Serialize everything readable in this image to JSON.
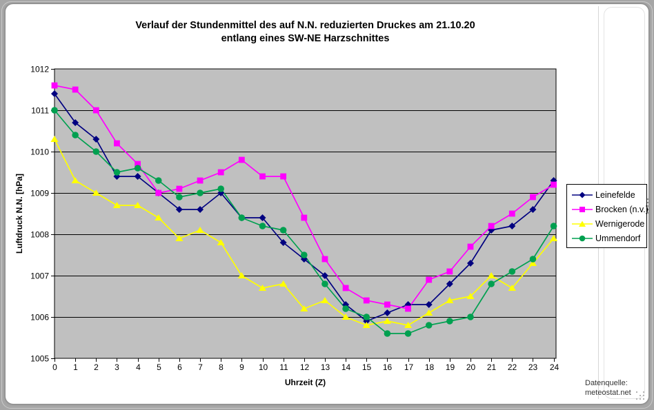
{
  "icons": {
    "pane_resize_handle": "vertical-drag-dots",
    "window_resize_grip": "diagonal-grip-dots"
  },
  "chart_data": {
    "type": "line",
    "title_line1": "Verlauf der Stundenmittel des auf N.N. reduzierten Druckes  am 21.10.20",
    "title_line2": "entlang eines SW-NE Harzschnittes",
    "xlabel": "Uhrzeit (Z)",
    "ylabel": "Luftdruck N.N. [hPa]",
    "source_line1": "Datenquelle:",
    "source_line2": "meteostat.net",
    "x": [
      0,
      1,
      2,
      3,
      4,
      5,
      6,
      7,
      8,
      9,
      10,
      11,
      12,
      13,
      14,
      15,
      16,
      17,
      18,
      19,
      20,
      21,
      22,
      23,
      24
    ],
    "series": [
      {
        "name": "Leinefelde",
        "color": "#000080",
        "marker": "diamond",
        "values": [
          1011.4,
          1010.7,
          1010.3,
          1009.4,
          1009.4,
          1009.0,
          1008.6,
          1008.6,
          1009.0,
          1008.4,
          1008.4,
          1007.8,
          1007.4,
          1007.0,
          1006.3,
          1005.9,
          1006.1,
          1006.3,
          1006.3,
          1006.8,
          1007.3,
          1008.1,
          1008.2,
          1008.6,
          1009.3
        ]
      },
      {
        "name": "Brocken (n.v.)",
        "color": "#FF00FF",
        "marker": "square",
        "values": [
          1011.6,
          1011.5,
          1011.0,
          1010.2,
          1009.7,
          1009.0,
          1009.1,
          1009.3,
          1009.5,
          1009.8,
          1009.4,
          1009.4,
          1008.4,
          1007.4,
          1006.7,
          1006.4,
          1006.3,
          1006.2,
          1006.9,
          1007.1,
          1007.7,
          1008.2,
          1008.5,
          1008.9,
          1009.2
        ]
      },
      {
        "name": "Wernigerode",
        "color": "#FFFF00",
        "marker": "triangle",
        "values": [
          1010.3,
          1009.3,
          1009.0,
          1008.7,
          1008.7,
          1008.4,
          1007.9,
          1008.1,
          1007.8,
          1007.0,
          1006.7,
          1006.8,
          1006.2,
          1006.4,
          1006.0,
          1005.8,
          1005.9,
          1005.8,
          1006.1,
          1006.4,
          1006.5,
          1007.0,
          1006.7,
          1007.3,
          1007.9
        ]
      },
      {
        "name": "Ummendorf",
        "color": "#00A050",
        "marker": "circle",
        "values": [
          1011.0,
          1010.4,
          1010.0,
          1009.5,
          1009.6,
          1009.3,
          1008.9,
          1009.0,
          1009.1,
          1008.4,
          1008.2,
          1008.1,
          1007.5,
          1006.8,
          1006.2,
          1006.0,
          1005.6,
          1005.6,
          1005.8,
          1005.9,
          1006.0,
          1006.8,
          1007.1,
          1007.4,
          1008.2
        ]
      }
    ],
    "ylim": [
      1005,
      1012
    ],
    "y_ticks": [
      1005,
      1006,
      1007,
      1008,
      1009,
      1010,
      1011,
      1012
    ],
    "x_ticks": [
      0,
      1,
      2,
      3,
      4,
      5,
      6,
      7,
      8,
      9,
      10,
      11,
      12,
      13,
      14,
      15,
      16,
      17,
      18,
      19,
      20,
      21,
      22,
      23,
      24
    ],
    "grid": true,
    "legend_position": "right",
    "plot_bg": "#C0C0C0",
    "gridline_color": "#000000",
    "axis_color": "#000000"
  }
}
